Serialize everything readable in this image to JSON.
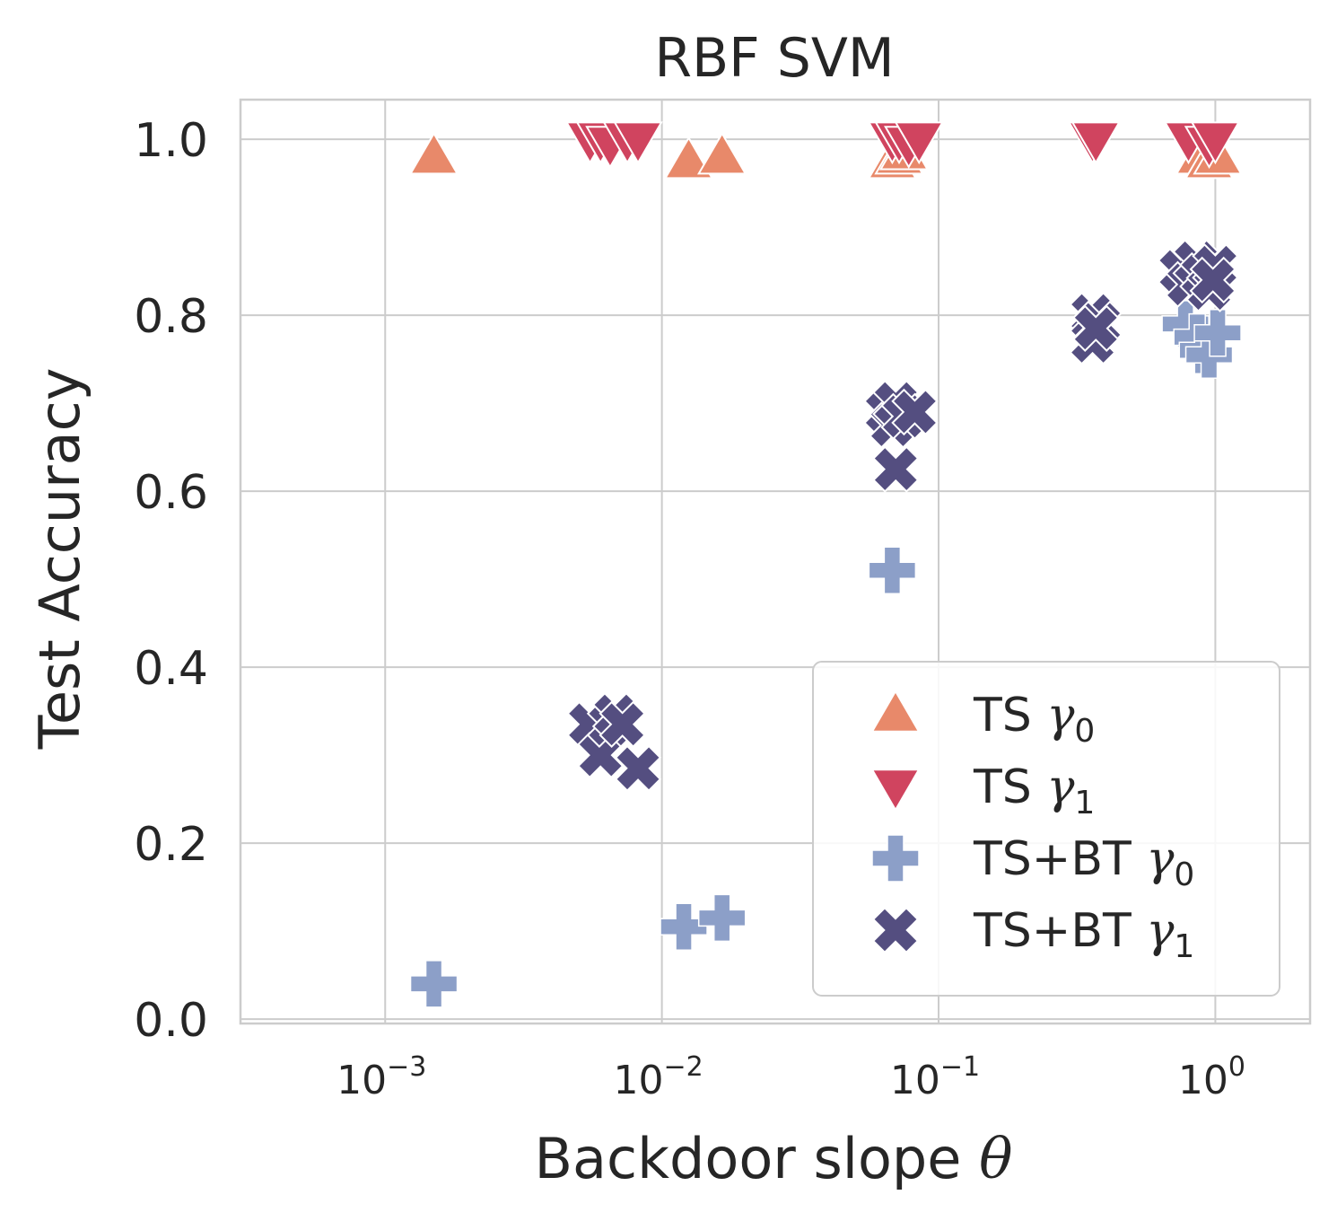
{
  "chart_data": {
    "type": "scatter",
    "title": "RBF SVM",
    "xlabel": "Backdoor slope",
    "xlabel_symbol": "θ",
    "ylabel": "Test Accuracy",
    "xscale": "log",
    "xlim": [
      0.0003,
      2.2
    ],
    "ylim": [
      -0.005,
      1.045
    ],
    "x_ticks": [
      {
        "value": 0.001,
        "base": "10",
        "exp": "−3"
      },
      {
        "value": 0.01,
        "base": "10",
        "exp": "−2"
      },
      {
        "value": 0.1,
        "base": "10",
        "exp": "−1"
      },
      {
        "value": 1,
        "base": "10",
        "exp": "0"
      }
    ],
    "y_ticks": [
      {
        "value": 0.0,
        "label": "0.0"
      },
      {
        "value": 0.2,
        "label": "0.2"
      },
      {
        "value": 0.4,
        "label": "0.4"
      },
      {
        "value": 0.6,
        "label": "0.6"
      },
      {
        "value": 0.8,
        "label": "0.8"
      },
      {
        "value": 1.0,
        "label": "1.0"
      }
    ],
    "grid": true,
    "legend_position": "lower-right",
    "series": [
      {
        "name": "TS γ0",
        "label_prefix": "TS ",
        "greek": "γ",
        "subscript": "0",
        "marker": "triangle-up",
        "color": "#e8896a",
        "points": [
          [
            0.0015,
            0.98
          ],
          [
            0.0125,
            0.975
          ],
          [
            0.0165,
            0.98
          ],
          [
            0.068,
            0.975
          ],
          [
            0.072,
            0.98
          ],
          [
            0.075,
            0.985
          ],
          [
            0.88,
            0.98
          ],
          [
            0.95,
            0.975
          ],
          [
            1.02,
            0.98
          ]
        ]
      },
      {
        "name": "TS γ1",
        "label_prefix": "TS ",
        "greek": "γ",
        "subscript": "1",
        "marker": "triangle-down",
        "color": "#d0445f",
        "points": [
          [
            0.0055,
            1.0
          ],
          [
            0.006,
            1.0
          ],
          [
            0.0065,
            0.995
          ],
          [
            0.0075,
            1.0
          ],
          [
            0.0082,
            1.0
          ],
          [
            0.068,
            1.0
          ],
          [
            0.072,
            1.0
          ],
          [
            0.078,
            0.995
          ],
          [
            0.085,
            1.0
          ],
          [
            0.36,
            1.0
          ],
          [
            0.37,
            1.0
          ],
          [
            0.8,
            1.0
          ],
          [
            0.95,
            0.995
          ],
          [
            1.0,
            1.0
          ]
        ]
      },
      {
        "name": "TS+BT γ0",
        "label_prefix": "TS+BT ",
        "greek": "γ",
        "subscript": "0",
        "marker": "plus",
        "color": "#8c9fc8",
        "points": [
          [
            0.0015,
            0.04
          ],
          [
            0.012,
            0.105
          ],
          [
            0.0165,
            0.115
          ],
          [
            0.068,
            0.51
          ],
          [
            0.78,
            0.79
          ],
          [
            0.86,
            0.775
          ],
          [
            0.9,
            0.76
          ],
          [
            0.95,
            0.755
          ],
          [
            1.02,
            0.78
          ]
        ]
      },
      {
        "name": "TS+BT γ1",
        "label_prefix": "TS+BT ",
        "greek": "γ",
        "subscript": "1",
        "marker": "x",
        "color": "#544e80",
        "points": [
          [
            0.0055,
            0.335
          ],
          [
            0.006,
            0.3
          ],
          [
            0.0065,
            0.335
          ],
          [
            0.0068,
            0.345
          ],
          [
            0.0072,
            0.335
          ],
          [
            0.0082,
            0.285
          ],
          [
            0.065,
            0.69
          ],
          [
            0.068,
            0.675
          ],
          [
            0.07,
            0.7
          ],
          [
            0.075,
            0.685
          ],
          [
            0.082,
            0.69
          ],
          [
            0.07,
            0.625
          ],
          [
            0.36,
            0.8
          ],
          [
            0.36,
            0.77
          ],
          [
            0.38,
            0.79
          ],
          [
            0.37,
            0.785
          ],
          [
            0.75,
            0.85
          ],
          [
            0.8,
            0.835
          ],
          [
            0.85,
            0.86
          ],
          [
            0.9,
            0.845
          ],
          [
            0.95,
            0.83
          ],
          [
            1.0,
            0.855
          ],
          [
            0.98,
            0.84
          ]
        ]
      }
    ]
  }
}
